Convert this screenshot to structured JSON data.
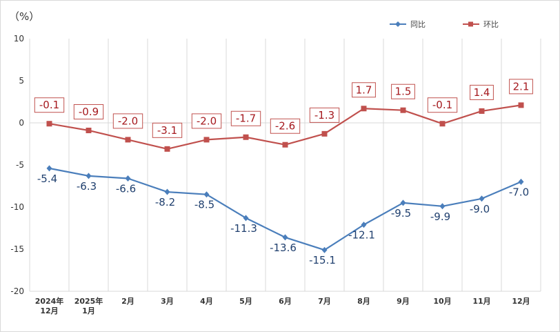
{
  "chart_data": {
    "type": "line",
    "unit_label": "（%）",
    "categories": [
      [
        "2024年",
        "12月"
      ],
      [
        "2025年",
        "1月"
      ],
      [
        "2月"
      ],
      [
        "3月"
      ],
      [
        "4月"
      ],
      [
        "5月"
      ],
      [
        "6月"
      ],
      [
        "7月"
      ],
      [
        "8月"
      ],
      [
        "9月"
      ],
      [
        "10月"
      ],
      [
        "11月"
      ],
      [
        "12月"
      ]
    ],
    "series": [
      {
        "name": "同比",
        "color": "#4a7ebb",
        "marker": "diamond",
        "label_color": "#1f3f6e",
        "values": [
          -5.4,
          -6.3,
          -6.6,
          -8.2,
          -8.5,
          -11.3,
          -13.6,
          -15.1,
          -12.1,
          -9.5,
          -9.9,
          -9.0,
          -7.0
        ],
        "labels": [
          "-5.4",
          "-6.3",
          "-6.6",
          "-8.2",
          "-8.5",
          "-11.3",
          "-13.6",
          "-15.1",
          "-12.1",
          "-9.5",
          "-9.9",
          "-9.0",
          "-7.0"
        ]
      },
      {
        "name": "环比",
        "color": "#c0504d",
        "marker": "square",
        "label_color": "#a5191e",
        "values": [
          -0.1,
          -0.9,
          -2.0,
          -3.1,
          -2.0,
          -1.7,
          -2.6,
          -1.3,
          1.7,
          1.5,
          -0.1,
          1.4,
          2.1
        ],
        "labels": [
          "-0.1",
          "-0.9",
          "-2.0",
          "-3.1",
          "-2.0",
          "-1.7",
          "-2.6",
          "-1.3",
          "1.7",
          "1.5",
          "-0.1",
          "1.4",
          "2.1"
        ]
      }
    ],
    "ylim": [
      -20,
      10
    ],
    "yticks": [
      10,
      5,
      0,
      -5,
      -10,
      -15,
      -20
    ],
    "ytick_labels": [
      "10",
      "5",
      "0",
      "-5",
      "-10",
      "-15",
      "-20"
    ],
    "legend_position": "top-right",
    "grid": "vertical"
  }
}
